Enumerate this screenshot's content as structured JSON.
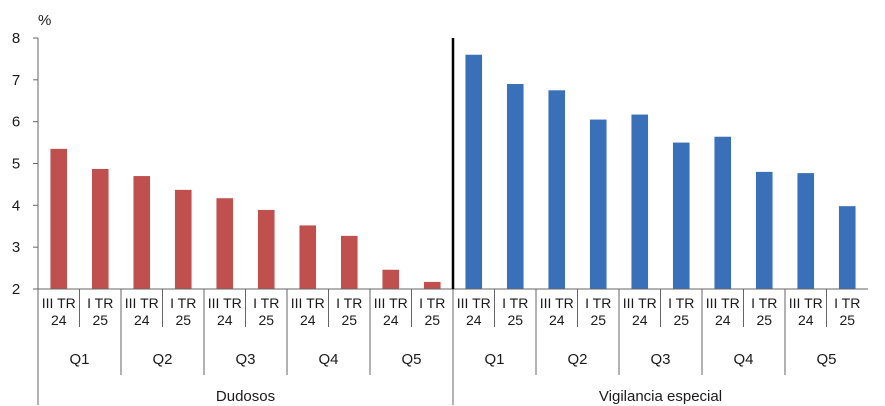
{
  "chart_data": {
    "type": "bar",
    "ylabel": "%",
    "ylim": [
      2,
      8
    ],
    "yticks": [
      "2",
      "3",
      "4",
      "5",
      "6",
      "7",
      "8"
    ],
    "grid": false,
    "legend": "none",
    "category_labels": [
      {
        "top": "III TR",
        "bottom": "24"
      },
      {
        "top": "I TR",
        "bottom": "25"
      }
    ],
    "groups": [
      "Q1",
      "Q2",
      "Q3",
      "Q4",
      "Q5"
    ],
    "series": [
      {
        "section": "Dudosos",
        "color": "#c0504d",
        "values": [
          5.35,
          4.87,
          4.7,
          4.37,
          4.17,
          3.89,
          3.52,
          3.27,
          2.46,
          2.17
        ]
      },
      {
        "section": "Vigilancia especial",
        "color": "#3a70b8",
        "values": [
          7.6,
          6.9,
          6.75,
          6.05,
          6.17,
          5.5,
          5.64,
          4.8,
          4.77,
          3.98
        ]
      }
    ]
  }
}
